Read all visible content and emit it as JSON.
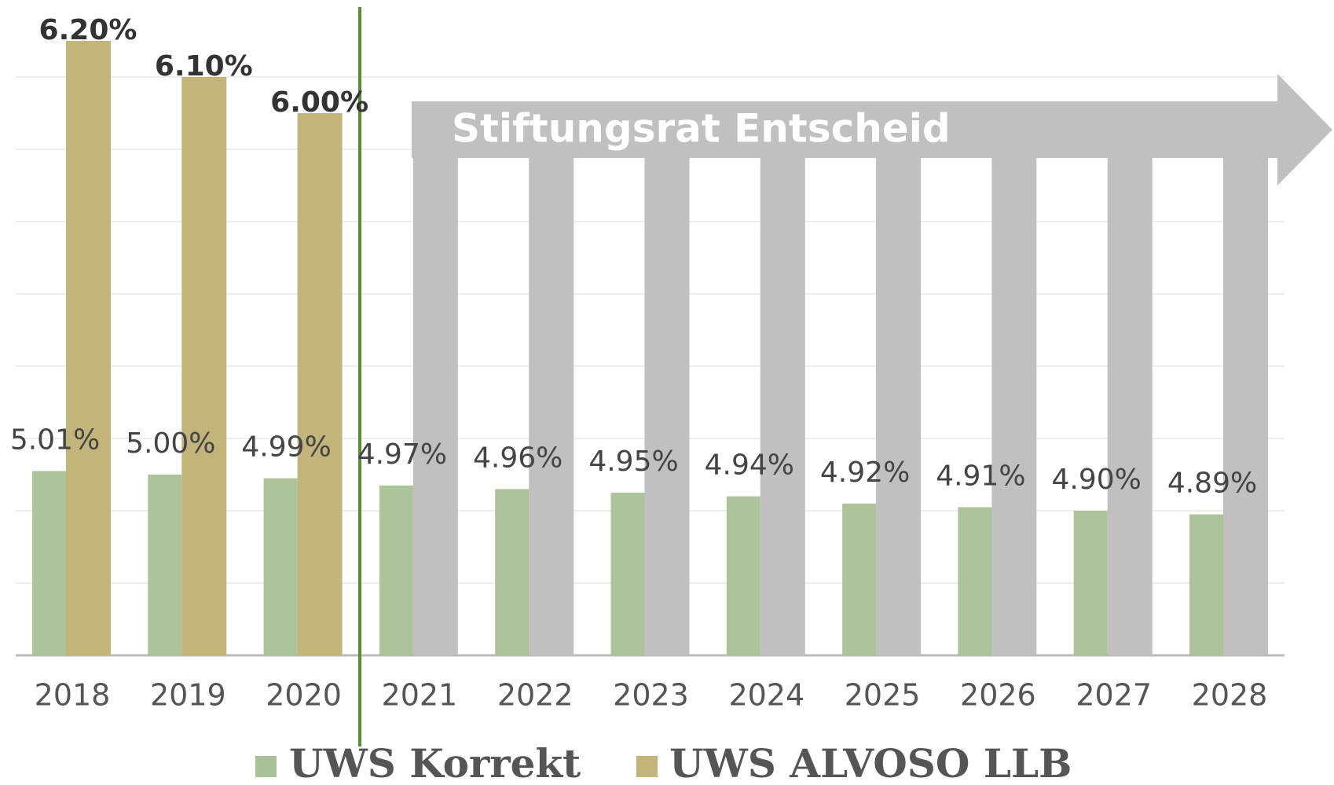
{
  "chart_data": {
    "type": "bar",
    "categories": [
      "2018",
      "2019",
      "2020",
      "2021",
      "2022",
      "2023",
      "2024",
      "2025",
      "2026",
      "2027",
      "2028"
    ],
    "series": [
      {
        "name": "UWS Korrekt",
        "color": "#a9c196",
        "values": [
          5.01,
          5.0,
          4.99,
          4.97,
          4.96,
          4.95,
          4.94,
          4.92,
          4.91,
          4.9,
          4.89
        ],
        "value_labels": [
          "5.01%",
          "5.00%",
          "4.99%",
          "4.97%",
          "4.96%",
          "4.95%",
          "4.94%",
          "4.92%",
          "4.91%",
          "4.90%",
          "4.89%"
        ]
      },
      {
        "name": "UWS ALVOSO LLB",
        "color": "#c3b47c",
        "values": [
          6.2,
          6.1,
          6.0,
          null,
          null,
          null,
          null,
          null,
          null,
          null,
          null
        ],
        "value_labels": [
          "6.20%",
          "6.10%",
          "6.00%",
          null,
          null,
          null,
          null,
          null,
          null,
          null,
          null
        ]
      }
    ],
    "annotation": "Stiftungsrat Entscheid",
    "ylim": [
      4.5,
      6.3
    ],
    "yticks": [
      4.5,
      4.7,
      4.9,
      5.1,
      5.3,
      5.5,
      5.7,
      5.9,
      6.1
    ],
    "grid": true
  }
}
